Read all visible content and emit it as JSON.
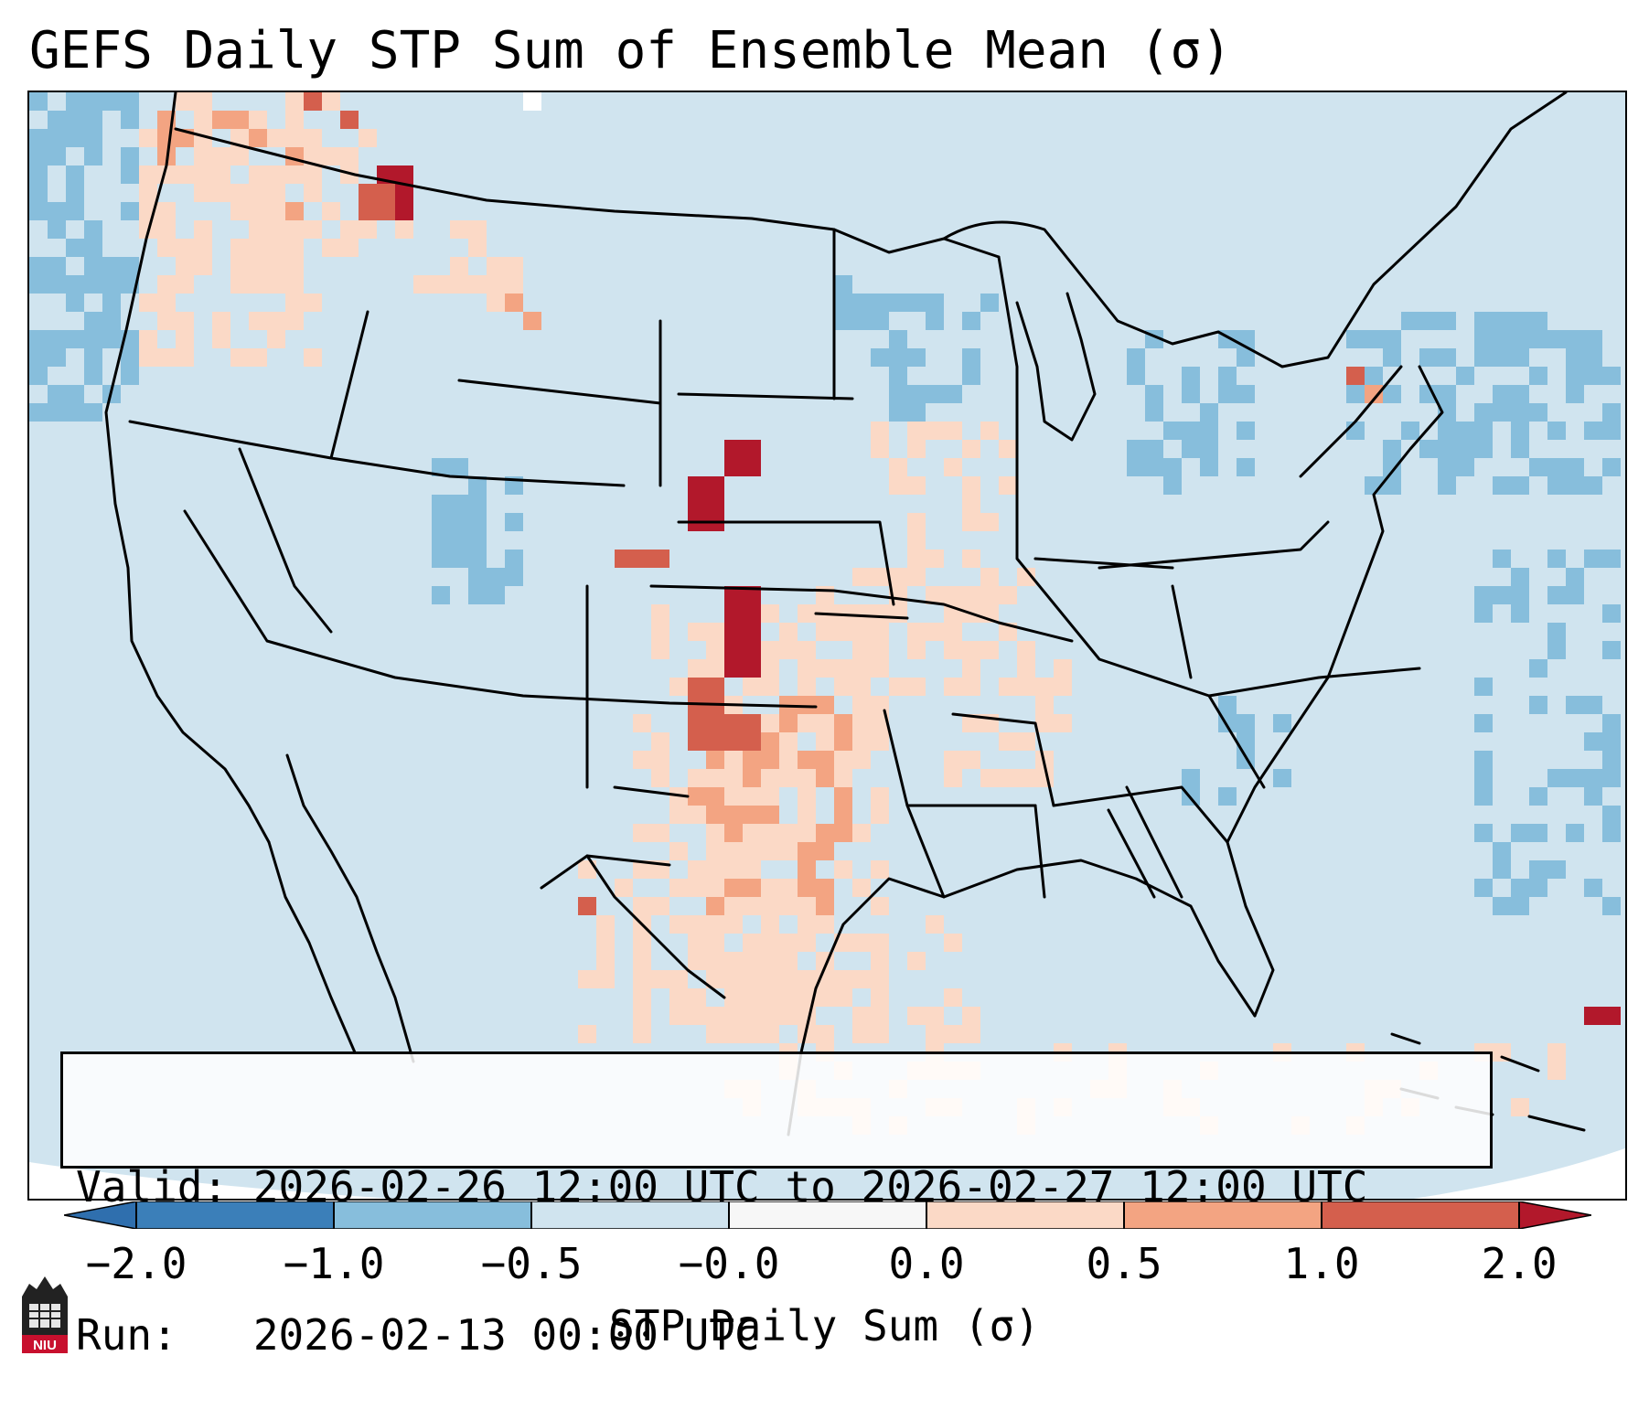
{
  "title": "GEFS Daily STP Sum of Ensemble Mean (σ)",
  "info": {
    "valid_line": "Valid: 2026-02-26 12:00 UTC to 2026-02-27 12:00 UTC",
    "run_line": "Run:   2026-02-13 00:00 UTC"
  },
  "colorbar": {
    "label": "STP Daily Sum (σ)",
    "ticks": [
      "−2.0",
      "−1.0",
      "−0.5",
      "−0.0",
      "0.0",
      "0.5",
      "1.0",
      "2.0"
    ],
    "bins": [
      {
        "color": "#3b7fb9"
      },
      {
        "color": "#87bedc"
      },
      {
        "color": "#d0e4ef"
      },
      {
        "color": "#f7f7f7"
      },
      {
        "color": "#fbd9c6"
      },
      {
        "color": "#f3a482"
      },
      {
        "color": "#d45f4d"
      }
    ],
    "under_color": "#2f6fae",
    "over_color": "#b2182b"
  },
  "logo": {
    "text": "NIU"
  },
  "colors": {
    "background": "#d0e4ef",
    "ice_blue": "#87bedc",
    "pale_red": "#fbd9c6",
    "red": "#f3a482",
    "dark_red": "#d45f4d",
    "deep_red": "#b2182b"
  }
}
